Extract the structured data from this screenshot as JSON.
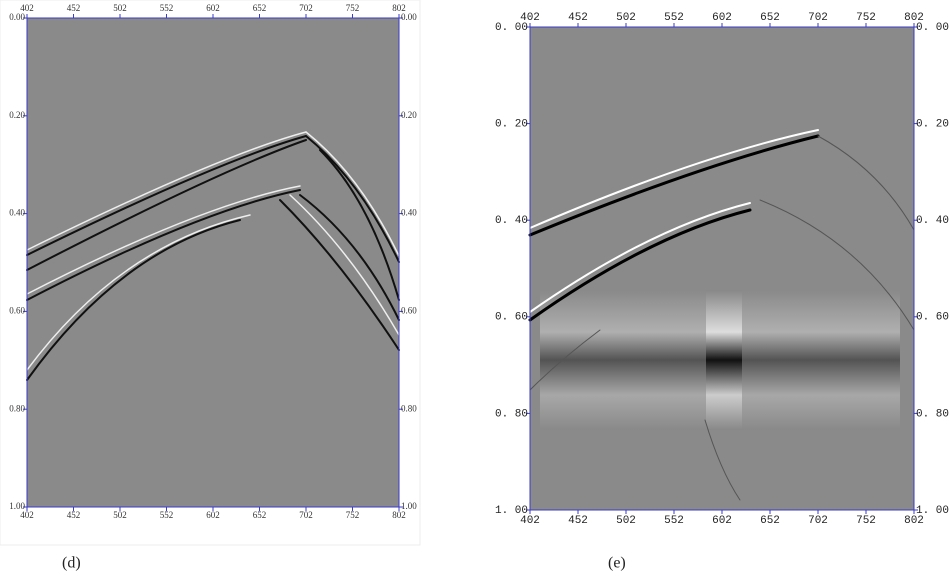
{
  "chart_data": [
    {
      "type": "image",
      "caption": "(d)",
      "xlim": [
        402,
        802
      ],
      "xticks": [
        402,
        452,
        502,
        552,
        602,
        652,
        702,
        752,
        802
      ],
      "ylim": [
        0,
        1
      ],
      "yticks": [
        {
          "value": 0,
          "label": "0.00"
        },
        {
          "value": 0.2,
          "label": "0.20"
        },
        {
          "value": 0.4,
          "label": "0.40"
        },
        {
          "value": 0.6,
          "label": "0.60"
        },
        {
          "value": 0.8,
          "label": "0.80"
        },
        {
          "value": 1,
          "label": "1.00"
        }
      ]
    },
    {
      "type": "image",
      "caption": "(e)",
      "xlim": [
        402,
        802
      ],
      "xticks": [
        402,
        452,
        502,
        552,
        602,
        652,
        702,
        752,
        802
      ],
      "ylim": [
        0,
        1
      ],
      "yticks": [
        {
          "value": 0,
          "label": "0. 00"
        },
        {
          "value": 0.2,
          "label": "0. 20"
        },
        {
          "value": 0.4,
          "label": "0. 40"
        },
        {
          "value": 0.6,
          "label": "0. 60"
        },
        {
          "value": 0.8,
          "label": "0. 80"
        },
        {
          "value": 1,
          "label": "1. 00"
        }
      ]
    }
  ]
}
